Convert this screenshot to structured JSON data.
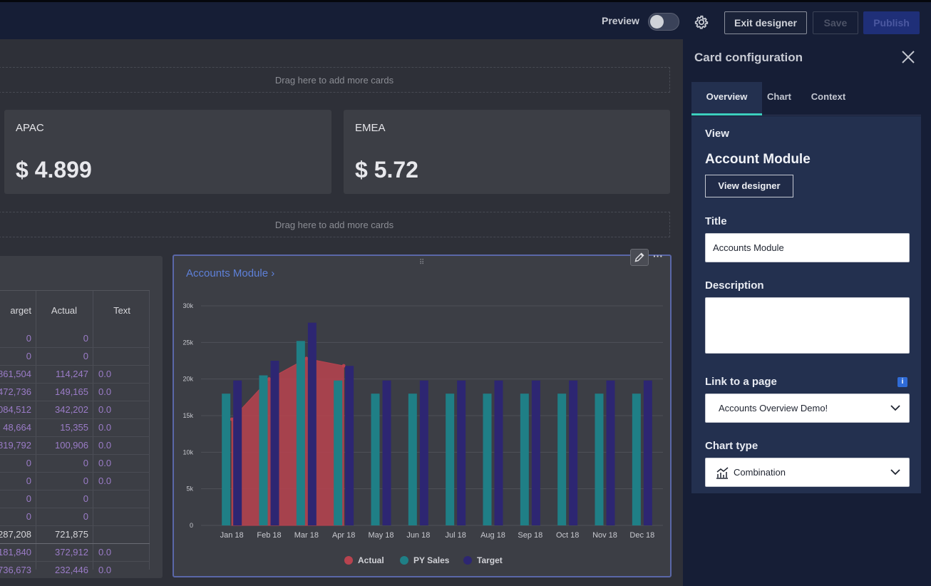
{
  "topbar": {
    "preview_label": "Preview",
    "exit_label": "Exit designer",
    "save_label": "Save",
    "publish_label": "Publish"
  },
  "dashboard": {
    "dropzone_text": "Drag here to add more cards",
    "kpis": [
      {
        "label": "APAC",
        "value": "$ 4.899"
      },
      {
        "label": "EMEA",
        "value": "$ 5.72"
      }
    ],
    "table": {
      "headers": [
        "arget",
        "Actual",
        "Text"
      ],
      "rows": [
        [
          "0",
          "0",
          ""
        ],
        [
          "0",
          "0",
          ""
        ],
        [
          "861,504",
          "114,247",
          "0.0"
        ],
        [
          "472,736",
          "149,165",
          "0.0"
        ],
        [
          "084,512",
          "342,202",
          "0.0"
        ],
        [
          "48,664",
          "15,355",
          "0.0"
        ],
        [
          "819,792",
          "100,906",
          "0.0"
        ],
        [
          "0",
          "0",
          "0.0"
        ],
        [
          "0",
          "0",
          "0.0"
        ],
        [
          "0",
          "0",
          ""
        ],
        [
          "0",
          "0",
          ""
        ],
        [
          "287,208",
          "721,875",
          ""
        ],
        [
          "181,840",
          "372,912",
          "0.0"
        ],
        [
          "736,673",
          "232,446",
          "0.0"
        ]
      ]
    },
    "chart_card": {
      "title": "Accounts Module ›",
      "drag_handle": "⠿",
      "more_label": "···"
    }
  },
  "chart_data": {
    "type": "bar",
    "title": "Accounts Module",
    "categories": [
      "Jan 18",
      "Feb 18",
      "Mar 18",
      "Apr 18",
      "May 18",
      "Jun 18",
      "Jul 18",
      "Aug 18",
      "Sep 18",
      "Oct 18",
      "Nov 18",
      "Dec 18"
    ],
    "ylim": [
      0,
      30000
    ],
    "yticks": [
      0,
      5000,
      10000,
      15000,
      20000,
      25000,
      30000
    ],
    "ytick_labels": [
      "0",
      "5k",
      "10k",
      "15k",
      "20k",
      "25k",
      "30k"
    ],
    "series": [
      {
        "name": "Actual",
        "type": "area",
        "color": "#b8434f",
        "values": [
          14500,
          20000,
          22800,
          21800,
          null,
          null,
          null,
          null,
          null,
          null,
          null,
          null
        ]
      },
      {
        "name": "PY Sales",
        "type": "bar",
        "color": "#1f7f86",
        "values": [
          18000,
          20500,
          25200,
          19800,
          18000,
          18000,
          18000,
          18000,
          18000,
          18000,
          18000,
          18000
        ]
      },
      {
        "name": "Target",
        "type": "bar",
        "color": "#2d2672",
        "values": [
          19800,
          22500,
          27700,
          21800,
          19800,
          19800,
          19800,
          19800,
          19800,
          19800,
          19800,
          19800
        ]
      }
    ],
    "legend": [
      "Actual",
      "PY Sales",
      "Target"
    ],
    "legend_position": "bottom"
  },
  "panel": {
    "title": "Card configuration",
    "tabs": [
      "Overview",
      "Chart",
      "Context"
    ],
    "view_label": "View",
    "module_name": "Account Module",
    "view_designer_label": "View designer",
    "title_label": "Title",
    "title_value": "Accounts Module",
    "description_label": "Description",
    "description_value": "",
    "link_label": "Link to a page",
    "link_value": "Accounts Overview Demo!",
    "info_glyph": "i",
    "chart_type_label": "Chart type",
    "chart_type_value": "Combination"
  }
}
